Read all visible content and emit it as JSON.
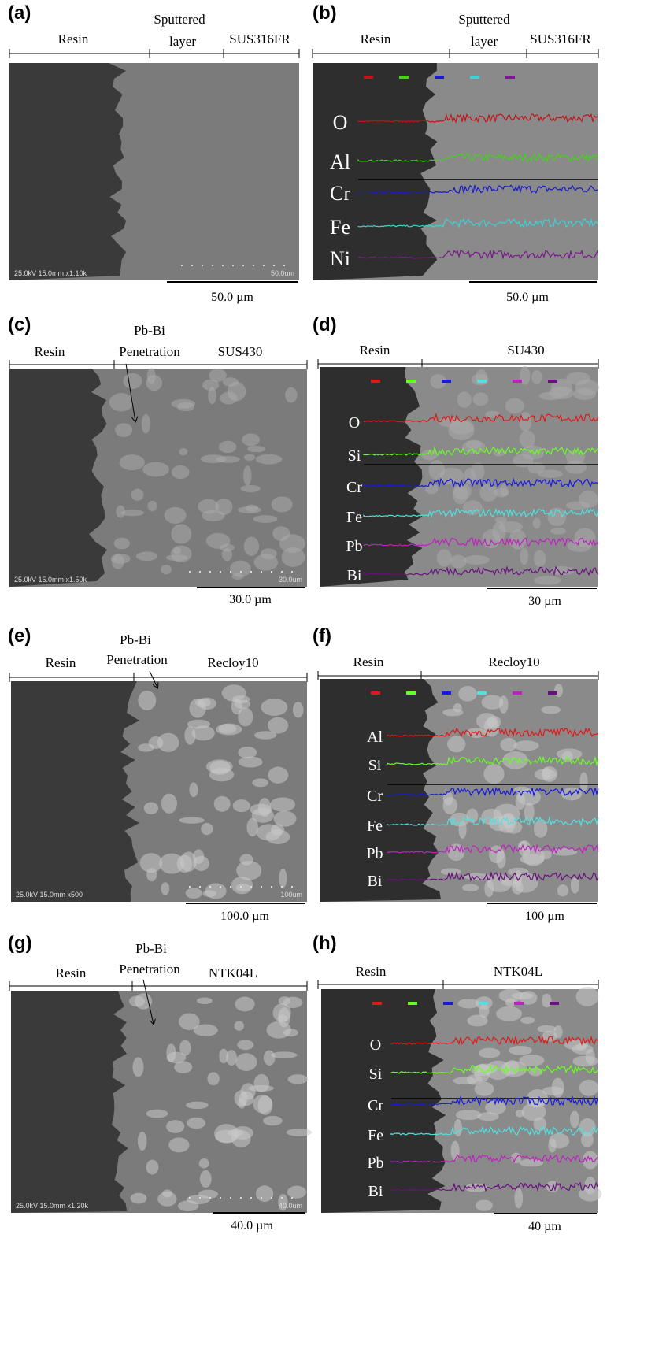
{
  "panels": [
    {
      "label": "(a)",
      "regions": [
        [
          "Resin"
        ],
        [
          "Sputtered",
          "layer"
        ],
        [
          "SUS316FR"
        ]
      ],
      "scale_bar": "50.0 µm",
      "sem_info": [
        "25.0kV 15.0mm x1.10k",
        "50.0um"
      ]
    },
    {
      "label": "(b)",
      "regions": [
        [
          "Resin"
        ],
        [
          "Sputtered",
          "layer"
        ],
        [
          "SUS316FR"
        ]
      ],
      "scale_bar": "50.0 µm",
      "elements": [
        {
          "name": "O",
          "color": "#c0141a"
        },
        {
          "name": "Al",
          "color": "#44d21a"
        },
        {
          "name": "Cr",
          "color": "#1a1ac8"
        },
        {
          "name": "Fe",
          "color": "#40d0d4"
        },
        {
          "name": "Ni",
          "color": "#7a1a8a"
        }
      ]
    },
    {
      "label": "(c)",
      "regions": [
        [
          "Resin"
        ],
        [
          "Pb-Bi",
          "Penetration"
        ],
        [
          "SUS430"
        ]
      ],
      "scale_bar": "30.0 µm",
      "sem_info": [
        "25.0kV 15.0mm x1.50k",
        "30.0um"
      ]
    },
    {
      "label": "(d)",
      "regions": [
        [
          "Resin"
        ],
        [
          "SU430"
        ]
      ],
      "scale_bar": "30 µm",
      "elements": [
        {
          "name": "O",
          "color": "#e01818"
        },
        {
          "name": "Si",
          "color": "#66ff22"
        },
        {
          "name": "Cr",
          "color": "#1818e0"
        },
        {
          "name": "Fe",
          "color": "#50e0e0"
        },
        {
          "name": "Pb",
          "color": "#c020c0"
        },
        {
          "name": "Bi",
          "color": "#6a1080"
        }
      ]
    },
    {
      "label": "(e)",
      "regions": [
        [
          "Resin"
        ],
        [
          "Pb-Bi",
          "Penetration"
        ],
        [
          "Recloy10"
        ]
      ],
      "scale_bar": "100.0 µm",
      "sem_info": [
        "25.0kV 15.0mm x500",
        "100um"
      ]
    },
    {
      "label": "(f)",
      "regions": [
        [
          "Resin"
        ],
        [
          "Recloy10"
        ]
      ],
      "scale_bar": "100 µm",
      "elements": [
        {
          "name": "Al",
          "color": "#e01818"
        },
        {
          "name": "Si",
          "color": "#66ff22"
        },
        {
          "name": "Cr",
          "color": "#1818e0"
        },
        {
          "name": "Fe",
          "color": "#50e0e0"
        },
        {
          "name": "Pb",
          "color": "#c020c0"
        },
        {
          "name": "Bi",
          "color": "#6a1080"
        }
      ]
    },
    {
      "label": "(g)",
      "regions": [
        [
          "Resin"
        ],
        [
          "Pb-Bi",
          "Penetration"
        ],
        [
          "NTK04L"
        ]
      ],
      "scale_bar": "40.0 µm",
      "sem_info": [
        "25.0kV 15.0mm x1.20k",
        "40.0um"
      ]
    },
    {
      "label": "(h)",
      "regions": [
        [
          "Resin"
        ],
        [
          "NTK04L"
        ]
      ],
      "scale_bar": "40 µm",
      "elements": [
        {
          "name": "O",
          "color": "#e01818"
        },
        {
          "name": "Si",
          "color": "#66ff22"
        },
        {
          "name": "Cr",
          "color": "#1818e0"
        },
        {
          "name": "Fe",
          "color": "#50e0e0"
        },
        {
          "name": "Pb",
          "color": "#c020c0"
        },
        {
          "name": "Bi",
          "color": "#6a1080"
        }
      ]
    }
  ]
}
